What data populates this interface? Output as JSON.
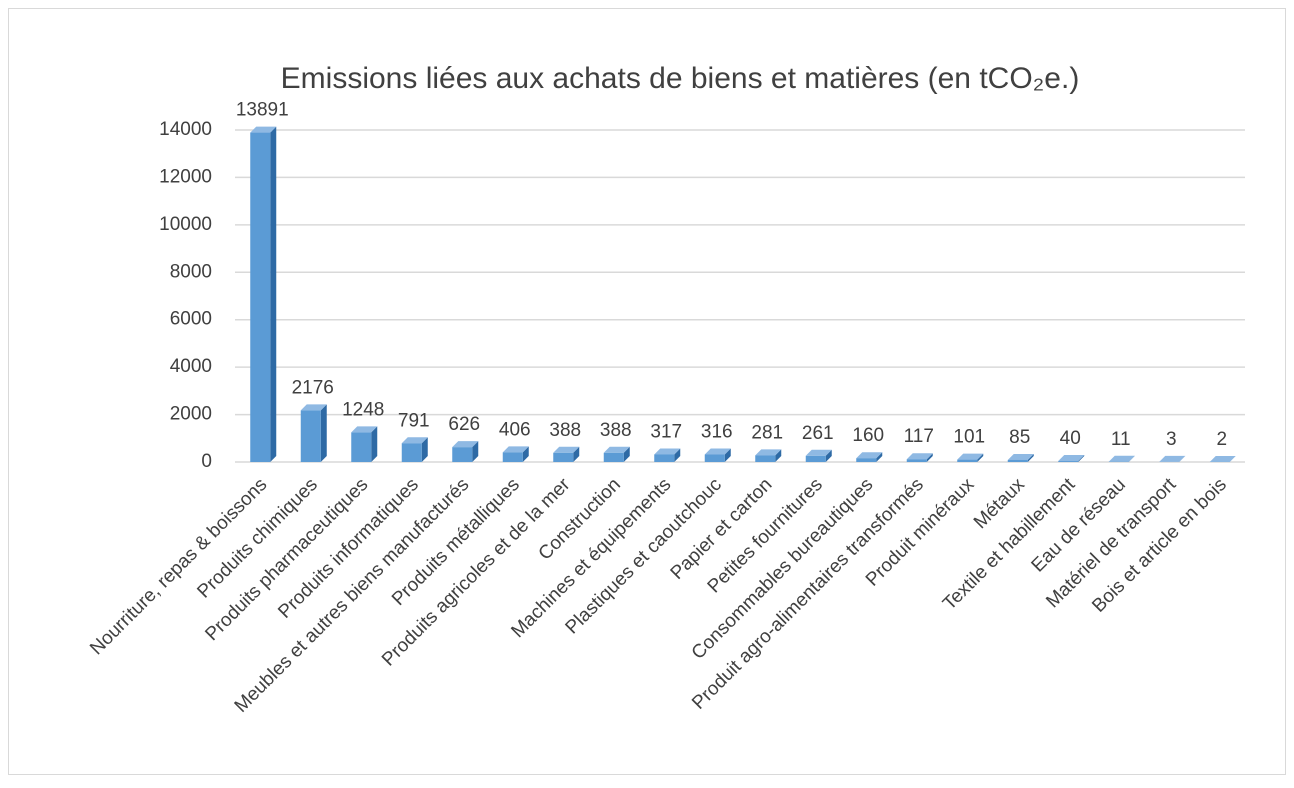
{
  "chart_data": {
    "type": "bar",
    "title": "Emissions liées aux achats de biens et matières (en tCO₂e.)",
    "categories": [
      "Nourriture, repas & boissons",
      "Produits chimiques",
      "Produits pharmaceutiques",
      "Produits informatiques",
      "Meubles et autres biens manufacturés",
      "Produits métalliques",
      "Produits agricoles et de la mer",
      "Construction",
      "Machines et équipements",
      "Plastiques et caoutchouc",
      "Papier et carton",
      "Petites fournitures",
      "Consommables bureautiques",
      "Produit agro-alimentaires transformés",
      "Produit minéraux",
      "Métaux",
      "Textile et habillement",
      "Eau de réseau",
      "Matériel de transport",
      "Bois et article en bois"
    ],
    "values": [
      13891,
      2176,
      1248,
      791,
      626,
      406,
      388,
      388,
      317,
      316,
      281,
      261,
      160,
      117,
      101,
      85,
      40,
      11,
      3,
      2
    ],
    "color": "#5b9bd5",
    "ylim": [
      0,
      14000
    ],
    "yticks": [
      0,
      2000,
      4000,
      6000,
      8000,
      10000,
      12000,
      14000
    ],
    "grid": true
  }
}
